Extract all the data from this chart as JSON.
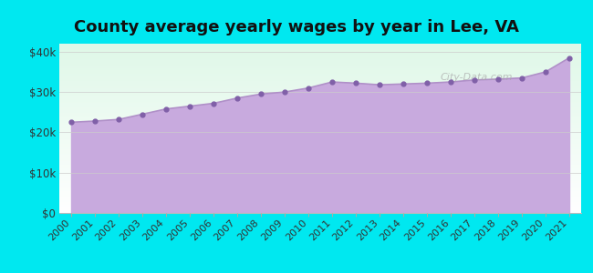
{
  "title": "County average yearly wages by year in Lee, VA",
  "years": [
    2000,
    2001,
    2002,
    2003,
    2004,
    2005,
    2006,
    2007,
    2008,
    2009,
    2010,
    2011,
    2012,
    2013,
    2014,
    2015,
    2016,
    2017,
    2018,
    2019,
    2020,
    2021
  ],
  "wages": [
    22500,
    22800,
    23200,
    24500,
    25800,
    26500,
    27200,
    28500,
    29500,
    30000,
    31000,
    32500,
    32200,
    31800,
    32000,
    32200,
    32500,
    33000,
    33200,
    33500,
    35000,
    38500
  ],
  "line_color": "#b090c8",
  "fill_color": "#c8aade",
  "fill_alpha": 1.0,
  "marker_color": "#8060a8",
  "marker_size": 3.5,
  "outer_bg_color": "#00e8f0",
  "plot_bg_top_color": "#f0fff4",
  "plot_bg_bottom_color": "#e8f0ff",
  "ylim": [
    0,
    42000
  ],
  "yticks": [
    0,
    10000,
    20000,
    30000,
    40000
  ],
  "ytick_labels": [
    "$0",
    "$10k",
    "$20k",
    "$30k",
    "$40k"
  ],
  "title_fontsize": 13,
  "tick_fontsize": 8.5,
  "watermark": "City-Data.com"
}
